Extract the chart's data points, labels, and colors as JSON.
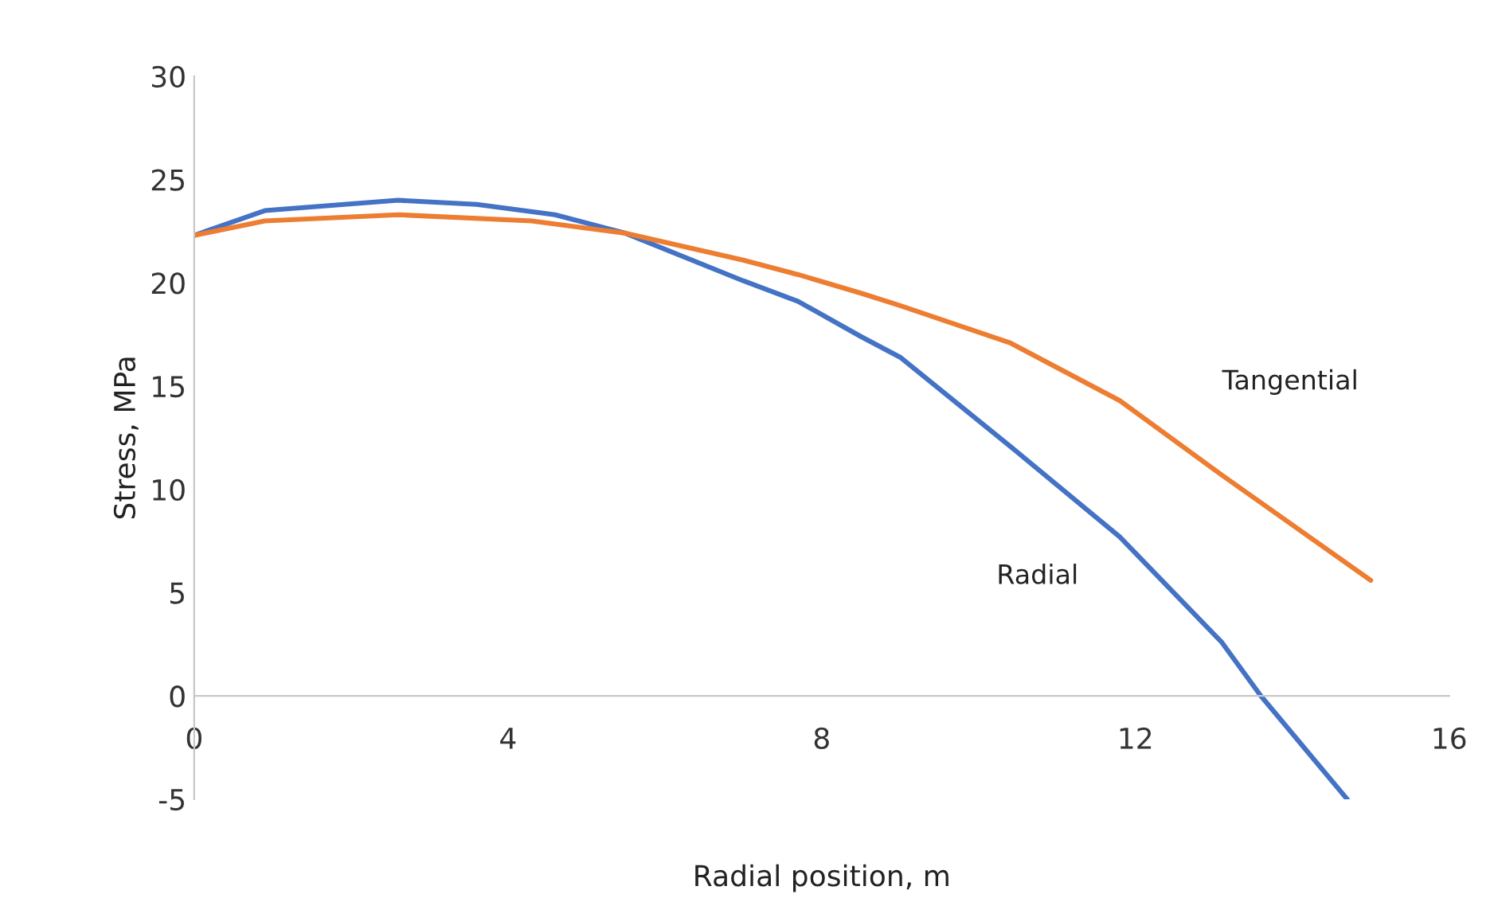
{
  "chart_data": {
    "type": "line",
    "xlabel": "Radial position, m",
    "ylabel": "Stress, MPa",
    "series": [
      {
        "name": "Radial",
        "color": "#4472c4",
        "x": [
          0,
          0.9,
          2.6,
          3.6,
          4.6,
          5.5,
          7.0,
          7.7,
          8.5,
          9.0,
          10.4,
          11.8,
          13.1,
          13.6,
          14.7
        ],
        "values": [
          22.3,
          23.5,
          24.0,
          23.8,
          23.3,
          22.4,
          20.1,
          19.1,
          17.4,
          16.4,
          12.1,
          7.7,
          2.6,
          0,
          -5.0
        ]
      },
      {
        "name": "Tangential",
        "color": "#ed7d31",
        "x": [
          0,
          0.9,
          2.6,
          4.3,
          5.5,
          7.0,
          7.7,
          8.5,
          9.0,
          10.4,
          11.8,
          13.1,
          15.0
        ],
        "values": [
          22.3,
          23.0,
          23.3,
          23.0,
          22.4,
          21.1,
          20.4,
          19.5,
          18.9,
          17.1,
          14.3,
          10.7,
          5.6
        ]
      }
    ],
    "xlim": [
      0,
      16
    ],
    "xticks": [
      0,
      4,
      8,
      12,
      16
    ],
    "ylim": [
      -5,
      30
    ],
    "yticks": [
      -5,
      0,
      5,
      10,
      15,
      20,
      25,
      30
    ],
    "grid": false,
    "legend": false,
    "marker": "none",
    "line_style": "solid"
  }
}
